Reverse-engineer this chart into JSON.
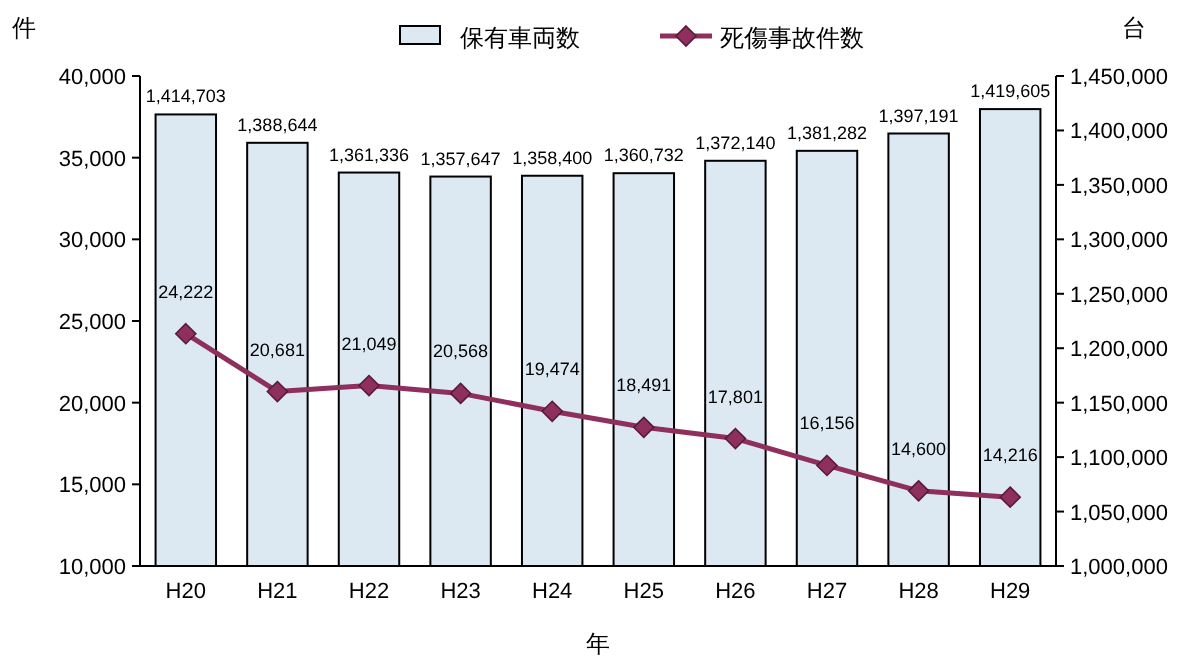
{
  "chart_data": {
    "type": "bar",
    "xlabel": "年",
    "ylabel": "件",
    "y2label": "台",
    "categories": [
      "H20",
      "H21",
      "H22",
      "H23",
      "H24",
      "H25",
      "H26",
      "H27",
      "H28",
      "H29"
    ],
    "series": [
      {
        "name": "保有車両数",
        "axis": "y2",
        "color": "#dde9f2",
        "values": [
          1414703,
          1388644,
          1361336,
          1357647,
          1358400,
          1360732,
          1372140,
          1381282,
          1397191,
          1419605
        ],
        "value_labels": [
          "1,414,703",
          "1,388,644",
          "1,361,336",
          "1,357,647",
          "1,358,400",
          "1,360,732",
          "1,372,140",
          "1,381,282",
          "1,397,191",
          "1,419,605"
        ]
      },
      {
        "name": "死傷事故件数",
        "type": "line",
        "axis": "y",
        "color": "#8e2f5e",
        "values": [
          24222,
          20681,
          21049,
          20568,
          19474,
          18491,
          17801,
          16156,
          14600,
          14216
        ],
        "value_labels": [
          "24,222",
          "20,681",
          "21,049",
          "20,568",
          "19,474",
          "18,491",
          "17,801",
          "16,156",
          "14,600",
          "14,216"
        ]
      }
    ],
    "ylim": [
      10000,
      40000
    ],
    "yticks": [
      {
        "value": 10000,
        "label": "10,000"
      },
      {
        "value": 15000,
        "label": "15,000"
      },
      {
        "value": 20000,
        "label": "20,000"
      },
      {
        "value": 25000,
        "label": "25,000"
      },
      {
        "value": 30000,
        "label": "30,000"
      },
      {
        "value": 35000,
        "label": "35,000"
      },
      {
        "value": 40000,
        "label": "40,000"
      }
    ],
    "y2lim": [
      1000000,
      1450000
    ],
    "y2ticks": [
      {
        "value": 1000000,
        "label": "1,000,000"
      },
      {
        "value": 1050000,
        "label": "1,050,000"
      },
      {
        "value": 1100000,
        "label": "1,100,000"
      },
      {
        "value": 1150000,
        "label": "1,150,000"
      },
      {
        "value": 1200000,
        "label": "1,200,000"
      },
      {
        "value": 1250000,
        "label": "1,250,000"
      },
      {
        "value": 1300000,
        "label": "1,300,000"
      },
      {
        "value": 1350000,
        "label": "1,350,000"
      },
      {
        "value": 1400000,
        "label": "1,400,000"
      },
      {
        "value": 1450000,
        "label": "1,450,000"
      }
    ],
    "marker": "diamond",
    "line_style": "solid",
    "legend": "top",
    "grid": false
  }
}
